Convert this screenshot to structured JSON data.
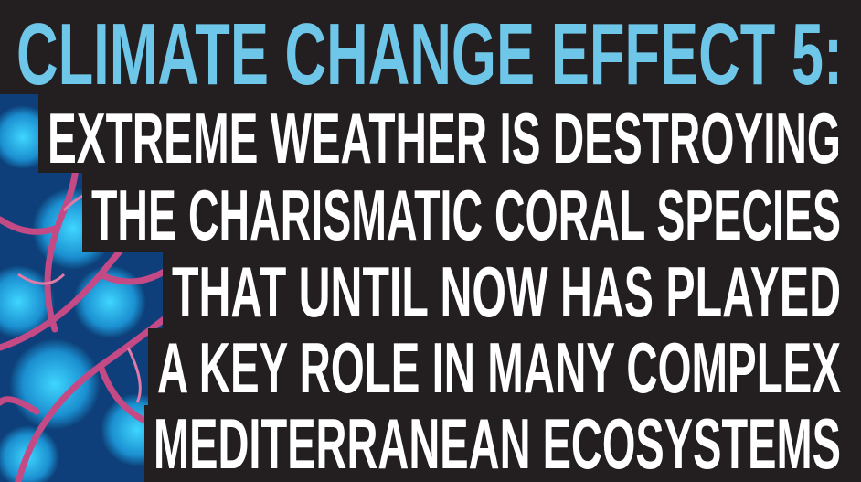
{
  "title": "CLIMATE CHANGE EFFECT 5:",
  "lines": [
    "EXTREME WEATHER IS DESTROYING",
    "THE CHARISMATIC CORAL SPECIES",
    "THAT UNTIL NOW HAS PLAYED",
    "A KEY ROLE IN MANY COMPLEX",
    "MEDITERRANEAN ECOSYSTEMS"
  ]
}
